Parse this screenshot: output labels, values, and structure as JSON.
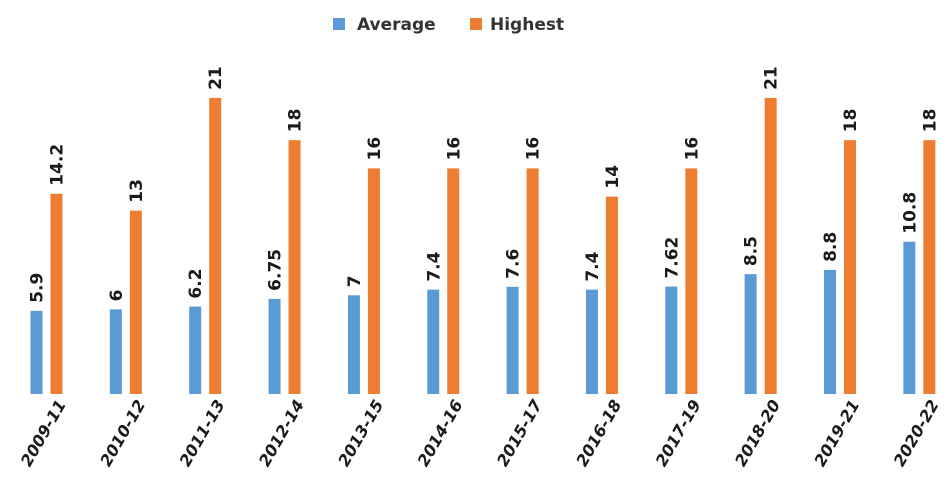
{
  "chart_data": {
    "type": "bar",
    "categories": [
      "2009-11",
      "2010-12",
      "2011-13",
      "2012-14",
      "2013-15",
      "2014-16",
      "2015-17",
      "2016-18",
      "2017-19",
      "2018-20",
      "2019-21",
      "2020-22"
    ],
    "series": [
      {
        "name": "Average",
        "color": "#5b9bd5",
        "values": [
          5.9,
          6,
          6.2,
          6.75,
          7,
          7.4,
          7.6,
          7.4,
          7.62,
          8.5,
          8.8,
          10.8
        ],
        "labels": [
          "5.9",
          "6",
          "6.2",
          "6.75",
          "7",
          "7.4",
          "7.6",
          "7.4",
          "7.62",
          "8.5",
          "8.8",
          "10.8"
        ]
      },
      {
        "name": "Highest",
        "color": "#ed7d31",
        "values": [
          14.2,
          13,
          21,
          18,
          16,
          16,
          16,
          14,
          16,
          21,
          18,
          18
        ],
        "labels": [
          "14.2",
          "13",
          "21",
          "18",
          "16",
          "16",
          "16",
          "14",
          "16",
          "21",
          "18",
          "18"
        ]
      }
    ],
    "ylim": [
      0,
      21
    ],
    "grid": false,
    "legend_position": "top-center"
  }
}
